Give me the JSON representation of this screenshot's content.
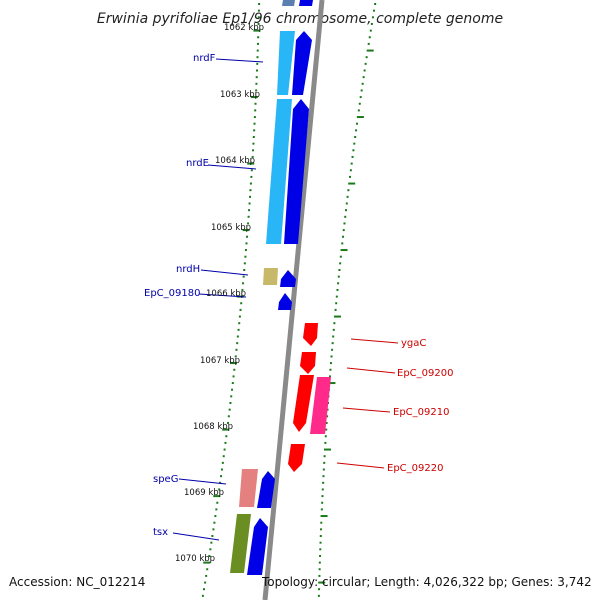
{
  "title": "Erwinia pyrifoliae Ep1/96 chromosome, complete genome",
  "footer": {
    "accession": "Accession: NC_012214",
    "summary": "Topology: circular; Length: 4,026,322 bp; Genes: 3,742"
  },
  "colors": {
    "backbone": "#8a8a8a",
    "tick": "#1a7a1a",
    "forward_gene": "#0000e6",
    "reverse_gene": "#ff0000",
    "left_label": "#0000aa",
    "right_label": "#cc0000"
  },
  "scale_labels": [
    "1062 kbp",
    "1063 kbp",
    "1064 kbp",
    "1065 kbp",
    "1066 kbp",
    "1067 kbp",
    "1068 kbp",
    "1069 kbp",
    "1070 kbp"
  ],
  "gene_labels_left": [
    "nrdF",
    "nrdE",
    "nrdH",
    "EpC_09180",
    "speG",
    "tsx"
  ],
  "gene_labels_right": [
    "ygaC",
    "EpC_09200",
    "EpC_09210",
    "EpC_09220"
  ],
  "gene_blocks": [
    {
      "name": "partial-top-light",
      "color": "#5a7fb0"
    },
    {
      "name": "partial-top-forward",
      "color": "#0000e6"
    },
    {
      "name": "nrdF-cog",
      "color": "#29b6f6"
    },
    {
      "name": "nrdF-forward",
      "color": "#0000e6"
    },
    {
      "name": "nrdE-cog",
      "color": "#29b6f6"
    },
    {
      "name": "nrdE-forward",
      "color": "#0000e6"
    },
    {
      "name": "nrdH-cog",
      "color": "#c8b96a"
    },
    {
      "name": "nrdH-forward",
      "color": "#0000e6"
    },
    {
      "name": "EpC_09180-forward",
      "color": "#0000e6"
    },
    {
      "name": "ygaC-reverse",
      "color": "#ff0000"
    },
    {
      "name": "EpC_09200-reverse",
      "color": "#ff0000"
    },
    {
      "name": "EpC_09210-reverse",
      "color": "#ff0000"
    },
    {
      "name": "EpC_09210-cog",
      "color": "#ff2a8a"
    },
    {
      "name": "EpC_09220-reverse",
      "color": "#ff0000"
    },
    {
      "name": "speG-cog",
      "color": "#e58080"
    },
    {
      "name": "speG-forward",
      "color": "#0000e6"
    },
    {
      "name": "tsx-cog",
      "color": "#6b8e23"
    },
    {
      "name": "tsx-forward",
      "color": "#0000e6"
    }
  ]
}
